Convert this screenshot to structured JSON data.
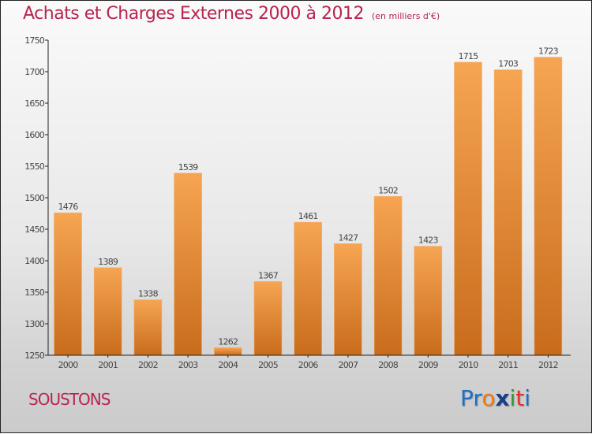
{
  "header": {
    "title": "Achats et Charges Externes 2000 à 2012",
    "subtitle": "(en milliers d'€)"
  },
  "footer": {
    "town": "SOUSTONS",
    "logo": {
      "letters": [
        "P",
        "r",
        "o",
        "x",
        "i",
        "t",
        "i"
      ],
      "colors": [
        "#1c6fc4",
        "#1c6fc4",
        "#f07a10",
        "#1a3e8a",
        "#2f9a2f",
        "#e03030",
        "#1c6fc4"
      ]
    }
  },
  "colors": {
    "title": "#b8254f",
    "bar_top": "#f6a552",
    "bar_bottom": "#c86c1c",
    "axis": "#222222"
  },
  "chart_data": {
    "type": "bar",
    "title": "Achats et Charges Externes 2000 à 2012",
    "subtitle": "(en milliers d'€)",
    "xlabel": "",
    "ylabel": "",
    "categories": [
      "2000",
      "2001",
      "2002",
      "2003",
      "2004",
      "2005",
      "2006",
      "2007",
      "2008",
      "2009",
      "2010",
      "2011",
      "2012"
    ],
    "values": [
      1476,
      1389,
      1338,
      1539,
      1262,
      1367,
      1461,
      1427,
      1502,
      1423,
      1715,
      1703,
      1723
    ],
    "ylim": [
      1250,
      1750
    ],
    "yticks": [
      1250,
      1300,
      1350,
      1400,
      1450,
      1500,
      1550,
      1600,
      1650,
      1700,
      1750
    ],
    "grid": false,
    "legend": "none",
    "data_labels": true
  }
}
